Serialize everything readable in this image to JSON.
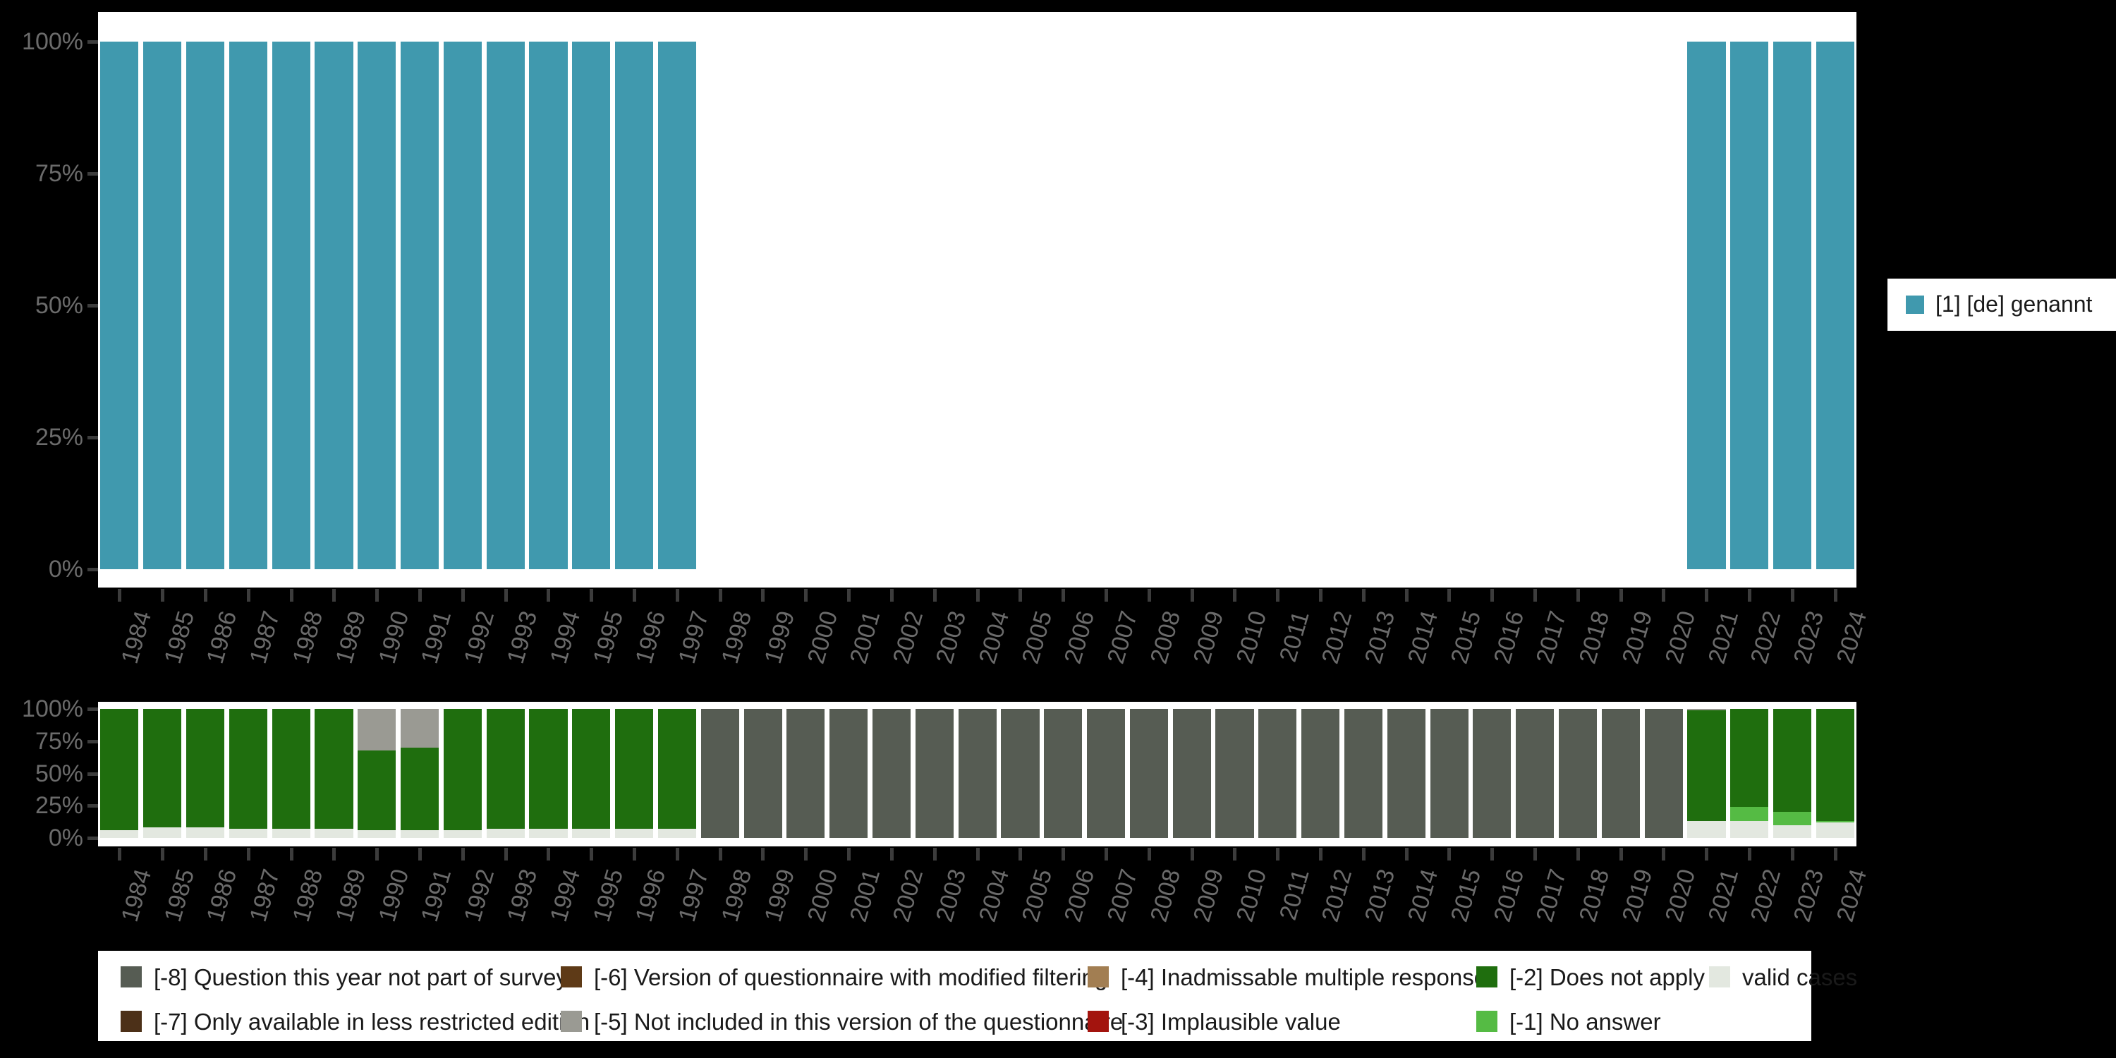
{
  "page": {
    "background": "#000000",
    "plot_background": "#ffffff"
  },
  "axis": {
    "yticks": [
      "100%",
      "75%",
      "50%",
      "25%",
      "0%"
    ],
    "tick_color": "#3c3c3c",
    "label_color": "#6b6b6b"
  },
  "legend_top": {
    "items": [
      {
        "label": "[1] [de] genannt",
        "color": "#4099ae"
      }
    ]
  },
  "legend_bottom": {
    "rows": [
      [
        {
          "label": "[-8] Question this year not part of survey",
          "color": "#565c53"
        },
        {
          "label": "[-6] Version of questionnaire with modified filtering",
          "color": "#5e3a17"
        },
        {
          "label": "[-4] Inadmissable multiple response",
          "color": "#a27e52"
        },
        {
          "label": "[-2] Does not apply",
          "color": "#1f6e0e"
        },
        {
          "label": "valid cases",
          "color": "#e3e8e0"
        }
      ],
      [
        {
          "label": "[-7] Only available in less restricted edition",
          "color": "#4c3018"
        },
        {
          "label": "[-5] Not included in this version of the questionnaire",
          "color": "#9a9a93"
        },
        {
          "label": "[-3] Implausible value",
          "color": "#a3140e"
        },
        {
          "label": "[-1] No answer",
          "color": "#55bb44"
        }
      ]
    ]
  },
  "chart_data": [
    {
      "type": "bar",
      "stacked": true,
      "title": "",
      "xlabel": "",
      "ylabel": "",
      "ylim": [
        0,
        100
      ],
      "yticks": [
        "100%",
        "75%",
        "50%",
        "25%",
        "0%"
      ],
      "legend_position": "right",
      "x": [
        "1984",
        "1985",
        "1986",
        "1987",
        "1988",
        "1989",
        "1990",
        "1991",
        "1992",
        "1993",
        "1994",
        "1995",
        "1996",
        "1997",
        "1998",
        "1999",
        "2000",
        "2001",
        "2002",
        "2003",
        "2004",
        "2005",
        "2006",
        "2007",
        "2008",
        "2009",
        "2010",
        "2011",
        "2012",
        "2013",
        "2014",
        "2015",
        "2016",
        "2017",
        "2018",
        "2019",
        "2020",
        "2021",
        "2022",
        "2023",
        "2024"
      ],
      "series": [
        {
          "name": "[1] [de] genannt",
          "color": "#4099ae",
          "values": [
            100,
            100,
            100,
            100,
            100,
            100,
            100,
            100,
            100,
            100,
            100,
            100,
            100,
            100,
            0,
            0,
            0,
            0,
            0,
            0,
            0,
            0,
            0,
            0,
            0,
            0,
            0,
            0,
            0,
            0,
            0,
            0,
            0,
            0,
            0,
            0,
            0,
            100,
            100,
            100,
            100
          ]
        }
      ]
    },
    {
      "type": "bar",
      "stacked": true,
      "title": "",
      "xlabel": "",
      "ylabel": "",
      "ylim": [
        0,
        100
      ],
      "yticks": [
        "100%",
        "75%",
        "50%",
        "25%",
        "0%"
      ],
      "legend_position": "bottom",
      "x": [
        "1984",
        "1985",
        "1986",
        "1987",
        "1988",
        "1989",
        "1990",
        "1991",
        "1992",
        "1993",
        "1994",
        "1995",
        "1996",
        "1997",
        "1998",
        "1999",
        "2000",
        "2001",
        "2002",
        "2003",
        "2004",
        "2005",
        "2006",
        "2007",
        "2008",
        "2009",
        "2010",
        "2011",
        "2012",
        "2013",
        "2014",
        "2015",
        "2016",
        "2017",
        "2018",
        "2019",
        "2020",
        "2021",
        "2022",
        "2023",
        "2024"
      ],
      "series": [
        {
          "name": "valid cases",
          "color": "#e3e8e0",
          "values": [
            6,
            8,
            8,
            7,
            7,
            7,
            6,
            6,
            6,
            7,
            7,
            7,
            7,
            7,
            0,
            0,
            0,
            0,
            0,
            0,
            0,
            0,
            0,
            0,
            0,
            0,
            0,
            0,
            0,
            0,
            0,
            0,
            0,
            0,
            0,
            0,
            0,
            13,
            13,
            10,
            12
          ]
        },
        {
          "name": "[-1] No answer",
          "color": "#55bb44",
          "values": [
            0,
            0,
            0,
            0,
            0,
            0,
            0,
            0,
            0,
            0,
            0,
            0,
            0,
            0,
            0,
            0,
            0,
            0,
            0,
            0,
            0,
            0,
            0,
            0,
            0,
            0,
            0,
            0,
            0,
            0,
            0,
            0,
            0,
            0,
            0,
            0,
            0,
            0,
            11,
            10,
            1
          ]
        },
        {
          "name": "[-2] Does not apply",
          "color": "#1f6e0e",
          "values": [
            94,
            92,
            92,
            93,
            93,
            93,
            62,
            64,
            94,
            93,
            93,
            93,
            93,
            93,
            0,
            0,
            0,
            0,
            0,
            0,
            0,
            0,
            0,
            0,
            0,
            0,
            0,
            0,
            0,
            0,
            0,
            0,
            0,
            0,
            0,
            0,
            0,
            86,
            76,
            80,
            87
          ]
        },
        {
          "name": "[-5] Not included in this version of the questionnaire",
          "color": "#9a9a93",
          "values": [
            0,
            0,
            0,
            0,
            0,
            0,
            32,
            30,
            0,
            0,
            0,
            0,
            0,
            0,
            0,
            0,
            0,
            0,
            0,
            0,
            0,
            0,
            0,
            0,
            0,
            0,
            0,
            0,
            0,
            0,
            0,
            0,
            0,
            0,
            0,
            0,
            0,
            1,
            0,
            0,
            0
          ]
        },
        {
          "name": "[-8] Question this year not part of survey",
          "color": "#565c53",
          "values": [
            0,
            0,
            0,
            0,
            0,
            0,
            0,
            0,
            0,
            0,
            0,
            0,
            0,
            0,
            100,
            100,
            100,
            100,
            100,
            100,
            100,
            100,
            100,
            100,
            100,
            100,
            100,
            100,
            100,
            100,
            100,
            100,
            100,
            100,
            100,
            100,
            100,
            0,
            0,
            0,
            0
          ]
        }
      ]
    }
  ]
}
